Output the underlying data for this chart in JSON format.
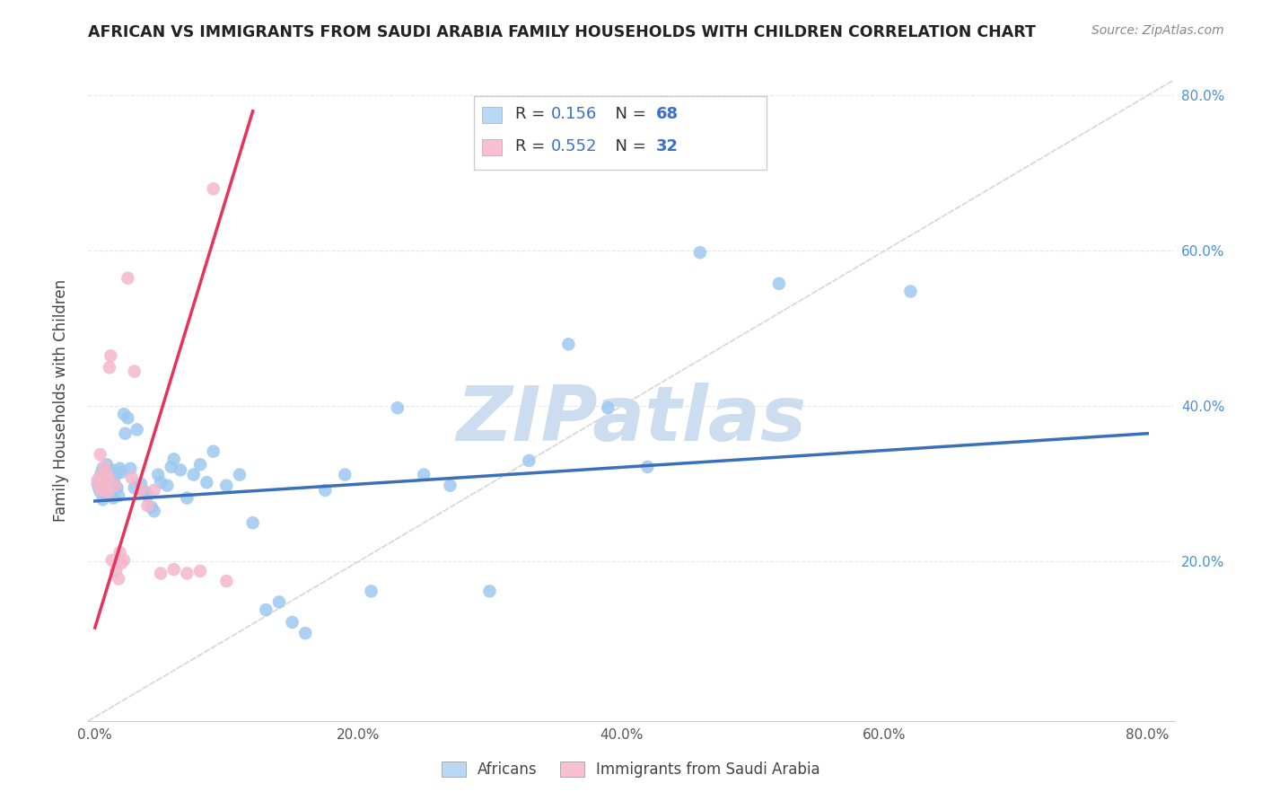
{
  "title": "AFRICAN VS IMMIGRANTS FROM SAUDI ARABIA FAMILY HOUSEHOLDS WITH CHILDREN CORRELATION CHART",
  "source": "Source: ZipAtlas.com",
  "ylabel": "Family Households with Children",
  "xlim": [
    -0.005,
    0.82
  ],
  "ylim": [
    -0.005,
    0.82
  ],
  "xticks": [
    0.0,
    0.2,
    0.4,
    0.6,
    0.8
  ],
  "yticks": [
    0.2,
    0.4,
    0.6,
    0.8
  ],
  "xtick_labels": [
    "0.0%",
    "20.0%",
    "40.0%",
    "60.0%",
    "80.0%"
  ],
  "ytick_labels": [
    "20.0%",
    "40.0%",
    "60.0%",
    "80.0%"
  ],
  "africans_color": "#9ec8f0",
  "saudi_color": "#f5b8cc",
  "trend_african_color": "#3a6fba",
  "trend_saudi_color": "#e8325a",
  "diagonal_color": "#cccccc",
  "watermark_color": "#ccddf0",
  "africans_R": 0.156,
  "africans_N": 68,
  "saudi_R": 0.552,
  "saudi_N": 32,
  "legend_box_color_af": "#b8d8f5",
  "legend_box_color_sa": "#f8c0d0",
  "legend_text_color": "#333333",
  "legend_val_color": "#3a70cc",
  "grid_color": "#e8e8e8",
  "africans_x": [
    0.002,
    0.003,
    0.004,
    0.004,
    0.005,
    0.005,
    0.006,
    0.006,
    0.007,
    0.007,
    0.008,
    0.008,
    0.009,
    0.01,
    0.01,
    0.011,
    0.012,
    0.013,
    0.014,
    0.015,
    0.016,
    0.017,
    0.018,
    0.019,
    0.02,
    0.022,
    0.023,
    0.025,
    0.027,
    0.03,
    0.032,
    0.035,
    0.038,
    0.04,
    0.043,
    0.045,
    0.048,
    0.05,
    0.055,
    0.058,
    0.06,
    0.065,
    0.07,
    0.075,
    0.08,
    0.085,
    0.09,
    0.1,
    0.11,
    0.12,
    0.13,
    0.14,
    0.15,
    0.16,
    0.175,
    0.19,
    0.21,
    0.23,
    0.25,
    0.27,
    0.3,
    0.33,
    0.36,
    0.39,
    0.42,
    0.46,
    0.52,
    0.62
  ],
  "africans_y": [
    0.3,
    0.295,
    0.31,
    0.29,
    0.305,
    0.315,
    0.28,
    0.32,
    0.295,
    0.31,
    0.3,
    0.29,
    0.325,
    0.295,
    0.31,
    0.305,
    0.29,
    0.318,
    0.282,
    0.3,
    0.312,
    0.295,
    0.285,
    0.32,
    0.315,
    0.39,
    0.365,
    0.385,
    0.32,
    0.295,
    0.37,
    0.3,
    0.29,
    0.285,
    0.27,
    0.265,
    0.312,
    0.302,
    0.298,
    0.322,
    0.332,
    0.318,
    0.282,
    0.312,
    0.325,
    0.302,
    0.342,
    0.298,
    0.312,
    0.25,
    0.138,
    0.148,
    0.122,
    0.108,
    0.292,
    0.312,
    0.162,
    0.398,
    0.312,
    0.298,
    0.162,
    0.33,
    0.48,
    0.398,
    0.322,
    0.598,
    0.558,
    0.548
  ],
  "saudi_x": [
    0.002,
    0.003,
    0.004,
    0.005,
    0.005,
    0.006,
    0.007,
    0.008,
    0.009,
    0.01,
    0.01,
    0.011,
    0.012,
    0.013,
    0.015,
    0.016,
    0.018,
    0.019,
    0.02,
    0.022,
    0.025,
    0.028,
    0.03,
    0.035,
    0.04,
    0.045,
    0.05,
    0.06,
    0.07,
    0.08,
    0.09,
    0.1
  ],
  "saudi_y": [
    0.305,
    0.298,
    0.338,
    0.312,
    0.292,
    0.302,
    0.322,
    0.298,
    0.312,
    0.308,
    0.29,
    0.45,
    0.465,
    0.202,
    0.298,
    0.188,
    0.178,
    0.212,
    0.198,
    0.202,
    0.565,
    0.308,
    0.445,
    0.292,
    0.272,
    0.292,
    0.185,
    0.19,
    0.185,
    0.188,
    0.68,
    0.175
  ],
  "trend_af_x0": 0.0,
  "trend_af_y0": 0.278,
  "trend_af_x1": 0.8,
  "trend_af_y1": 0.365,
  "trend_sa_x0": 0.0,
  "trend_sa_y0": 0.115,
  "trend_sa_x1": 0.12,
  "trend_sa_y1": 0.78
}
